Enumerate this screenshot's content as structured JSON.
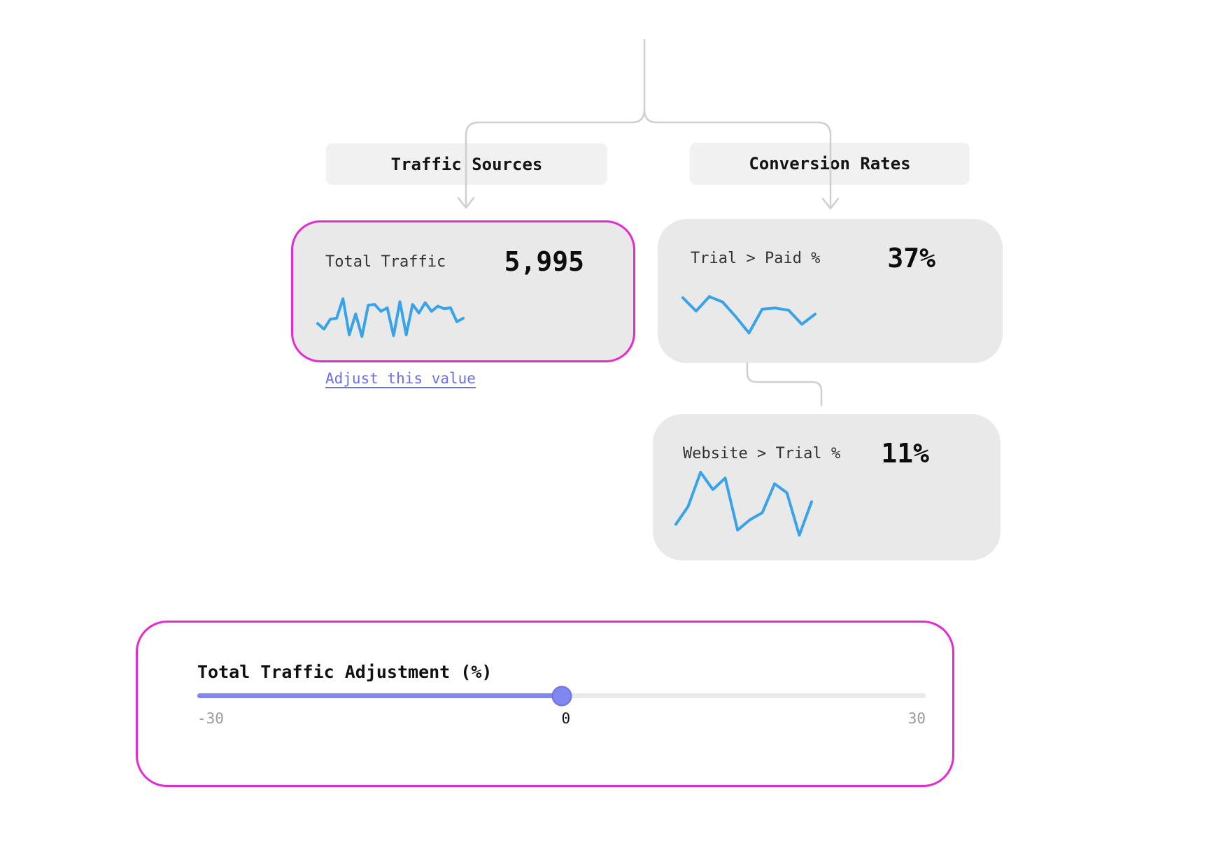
{
  "colors": {
    "accent_magenta": "#e52ad4",
    "sparkline_blue": "#38a3e8",
    "link_indigo": "#6a6ef0",
    "slider_fill": "#8187f0",
    "connector_grey": "#cfcfcf",
    "card_grey": "#e9e9e9",
    "group_box_grey": "#f1f1f1"
  },
  "tree": {
    "group_labels": {
      "traffic_sources": "Traffic Sources",
      "conversion_rates": "Conversion Rates"
    },
    "nodes": {
      "total_traffic": {
        "label": "Total Traffic",
        "value": "5,995"
      },
      "trial_paid": {
        "label": "Trial > Paid %",
        "value": "37%"
      },
      "website_trial": {
        "label": "Website > Trial %",
        "value": "11%"
      }
    },
    "adjust_link": "Adjust this value"
  },
  "slider": {
    "label": "Total Traffic Adjustment (%)",
    "min": -30,
    "max": 30,
    "value": 0,
    "min_label": "-30",
    "value_label": "0",
    "max_label": "30"
  },
  "chart_data": [
    {
      "type": "line",
      "name": "total-traffic-sparkline",
      "values": [
        38,
        25,
        48,
        50,
        95,
        12,
        60,
        8,
        80,
        82,
        66,
        74,
        10,
        88,
        12,
        82,
        62,
        86,
        66,
        78,
        72,
        74,
        42,
        50
      ]
    },
    {
      "type": "line",
      "name": "trial-paid-sparkline",
      "values": [
        95,
        60,
        98,
        84,
        45,
        2,
        65,
        68,
        62,
        25,
        52
      ]
    },
    {
      "type": "line",
      "name": "website-trial-sparkline",
      "values": [
        18,
        46,
        99,
        72,
        90,
        9,
        25,
        36,
        81,
        67,
        1,
        53
      ]
    }
  ]
}
